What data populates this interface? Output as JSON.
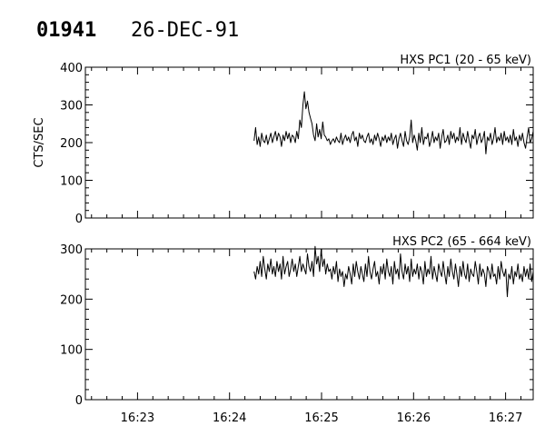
{
  "header": {
    "id": "01941",
    "date": "26-DEC-91"
  },
  "chart_data": [
    {
      "type": "line",
      "title": "HXS PC1 (20 - 65 keV)",
      "ylabel": "CTS/SEC",
      "xlim": [
        "16:22:26",
        "16:27:18"
      ],
      "ylim": [
        0,
        400
      ],
      "yticks": [
        0,
        100,
        200,
        300,
        400
      ],
      "xticks": [
        "16:23",
        "16:24",
        "16:25",
        "16:26",
        "16:27"
      ],
      "xtick_labels_shown": false,
      "series": [
        {
          "x_start": "16:24:16",
          "x_end": "16:27:18",
          "values": [
            205,
            240,
            195,
            215,
            190,
            225,
            205,
            200,
            220,
            195,
            210,
            225,
            200,
            215,
            230,
            205,
            225,
            215,
            190,
            220,
            205,
            230,
            210,
            225,
            200,
            220,
            215,
            200,
            230,
            210,
            260,
            240,
            300,
            335,
            290,
            310,
            280,
            265,
            250,
            220,
            205,
            250,
            215,
            235,
            210,
            255,
            220,
            215,
            205,
            210,
            195,
            205,
            210,
            200,
            215,
            205,
            200,
            225,
            195,
            210,
            220,
            205,
            215,
            200,
            220,
            230,
            205,
            215,
            190,
            225,
            210,
            220,
            205,
            200,
            215,
            225,
            200,
            210,
            195,
            220,
            205,
            225,
            210,
            190,
            215,
            205,
            220,
            200,
            215,
            205,
            225,
            195,
            210,
            220,
            185,
            210,
            225,
            205,
            190,
            230,
            205,
            195,
            215,
            260,
            200,
            220,
            205,
            180,
            225,
            200,
            240,
            195,
            215,
            210,
            225,
            190,
            205,
            230,
            200,
            215,
            205,
            225,
            185,
            215,
            235,
            200,
            205,
            220,
            195,
            230,
            210,
            225,
            200,
            215,
            205,
            240,
            195,
            225,
            210,
            200,
            230,
            205,
            185,
            220,
            210,
            235,
            195,
            215,
            225,
            200,
            210,
            230,
            170,
            215,
            205,
            225,
            195,
            210,
            240,
            200,
            215,
            205,
            225,
            195,
            230,
            205,
            215,
            200,
            220,
            195,
            235,
            205,
            215,
            190,
            220,
            205,
            225,
            200,
            185,
            215,
            240,
            200,
            210,
            230
          ]
        }
      ]
    },
    {
      "type": "line",
      "title": "HXS PC2 (65 - 664 keV)",
      "ylabel": "",
      "xlim": [
        "16:22:26",
        "16:27:18"
      ],
      "ylim": [
        0,
        300
      ],
      "yticks": [
        0,
        100,
        200,
        300
      ],
      "xticks": [
        "16:23",
        "16:24",
        "16:25",
        "16:26",
        "16:27"
      ],
      "xtick_labels_shown": true,
      "series": [
        {
          "x_start": "16:24:16",
          "x_end": "16:27:18",
          "values": [
            255,
            240,
            265,
            250,
            275,
            245,
            285,
            260,
            240,
            270,
            255,
            280,
            250,
            265,
            245,
            275,
            255,
            270,
            240,
            285,
            250,
            265,
            275,
            245,
            260,
            280,
            255,
            270,
            245,
            265,
            285,
            255,
            270,
            260,
            250,
            290,
            265,
            255,
            275,
            245,
            305,
            270,
            285,
            255,
            300,
            265,
            280,
            250,
            270,
            255,
            260,
            240,
            265,
            250,
            275,
            235,
            260,
            245,
            255,
            225,
            250,
            240,
            265,
            250,
            230,
            270,
            245,
            275,
            255,
            240,
            265,
            250,
            235,
            270,
            245,
            285,
            255,
            240,
            260,
            275,
            245,
            255,
            230,
            265,
            250,
            270,
            240,
            280,
            255,
            245,
            265,
            230,
            275,
            250,
            260,
            240,
            290,
            255,
            240,
            270,
            250,
            265,
            235,
            280,
            245,
            260,
            250,
            270,
            240,
            265,
            255,
            230,
            275,
            245,
            260,
            250,
            285,
            240,
            265,
            250,
            235,
            270,
            255,
            245,
            275,
            250,
            230,
            265,
            245,
            280,
            255,
            240,
            270,
            250,
            225,
            265,
            245,
            275,
            250,
            240,
            270,
            235,
            260,
            250,
            245,
            275,
            255,
            230,
            270,
            245,
            260,
            250,
            225,
            265,
            255,
            240,
            270,
            245,
            250,
            230,
            265,
            240,
            275,
            255,
            245,
            260,
            205,
            250,
            240,
            265,
            230,
            255,
            245,
            270,
            240,
            250,
            235,
            265,
            245,
            260,
            240,
            270,
            235,
            255
          ]
        }
      ]
    }
  ]
}
